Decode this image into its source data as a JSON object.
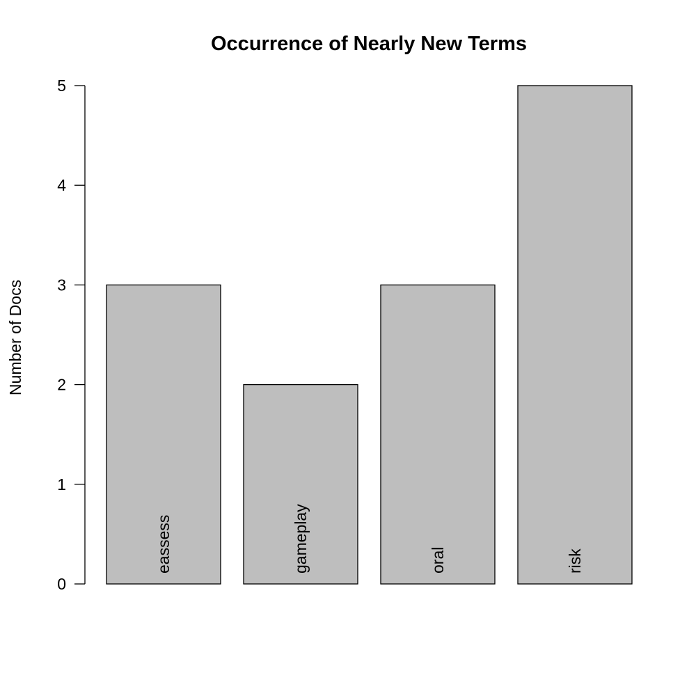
{
  "chart_data": {
    "type": "bar",
    "title": "Occurrence of Nearly New Terms",
    "xlabel": "",
    "ylabel": "Number of Docs",
    "categories": [
      "eassess",
      "gameplay",
      "oral",
      "risk"
    ],
    "values": [
      3,
      2,
      3,
      5
    ],
    "ylim": [
      0,
      5
    ],
    "yticks": [
      0,
      1,
      2,
      3,
      4,
      5
    ],
    "category_labels_inside_bars": true,
    "bar_color": "#bebebe",
    "bar_border_color": "#000000",
    "grid": false
  }
}
